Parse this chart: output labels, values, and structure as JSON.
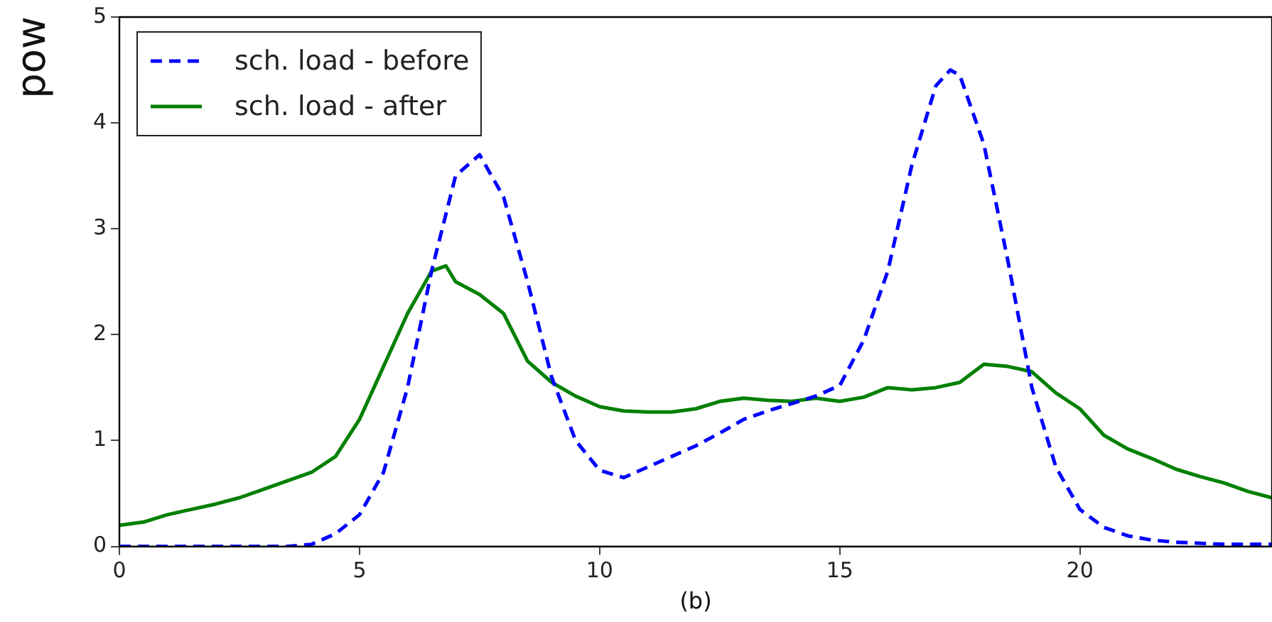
{
  "chart_data": {
    "type": "line",
    "ylabel": "pow",
    "xlabel": "(b)",
    "xlim": [
      0,
      24
    ],
    "xticks": [
      0,
      5,
      10,
      15,
      20
    ],
    "ylim": [
      0,
      5
    ],
    "yticks": [
      0,
      1,
      2,
      3,
      4,
      5
    ],
    "grid": false,
    "legend": "top left",
    "marker": "none",
    "series": [
      {
        "name": "sch. load - before",
        "color": "#0000ff",
        "line_style": "dashed",
        "x": [
          0,
          0.5,
          1,
          1.5,
          2,
          2.5,
          3,
          3.5,
          4,
          4.5,
          5,
          5.5,
          6,
          6.5,
          7,
          7.5,
          8,
          8.5,
          9,
          9.5,
          10,
          10.5,
          11,
          11.5,
          12,
          12.5,
          13,
          13.5,
          14,
          14.5,
          15,
          15.5,
          16,
          16.5,
          17,
          17.3,
          17.5,
          18,
          18.5,
          19,
          19.5,
          20,
          20.5,
          21,
          21.5,
          22,
          23,
          24
        ],
        "values": [
          0,
          0,
          0,
          0,
          0,
          0,
          0,
          0,
          0.02,
          0.12,
          0.3,
          0.7,
          1.5,
          2.6,
          3.5,
          3.7,
          3.3,
          2.5,
          1.6,
          1.0,
          0.72,
          0.65,
          0.75,
          0.85,
          0.95,
          1.07,
          1.2,
          1.28,
          1.35,
          1.42,
          1.52,
          1.95,
          2.6,
          3.6,
          4.35,
          4.5,
          4.45,
          3.8,
          2.7,
          1.5,
          0.75,
          0.35,
          0.18,
          0.1,
          0.06,
          0.04,
          0.02,
          0.02
        ]
      },
      {
        "name": "sch. load - after",
        "color": "#008000",
        "line_style": "solid",
        "x": [
          0,
          0.5,
          1,
          1.5,
          2,
          2.5,
          3,
          3.5,
          4,
          4.5,
          5,
          5.5,
          6,
          6.5,
          6.8,
          7,
          7.5,
          8,
          8.5,
          9,
          9.5,
          10,
          10.5,
          11,
          11.5,
          12,
          12.5,
          13,
          13.5,
          14,
          14.5,
          15,
          15.5,
          16,
          16.5,
          17,
          17.5,
          18,
          18.5,
          19,
          19.5,
          20,
          20.5,
          21,
          21.5,
          22,
          22.5,
          23,
          23.5,
          24
        ],
        "values": [
          0.2,
          0.23,
          0.3,
          0.35,
          0.4,
          0.46,
          0.54,
          0.62,
          0.7,
          0.85,
          1.2,
          1.7,
          2.2,
          2.6,
          2.65,
          2.5,
          2.38,
          2.2,
          1.75,
          1.55,
          1.42,
          1.32,
          1.28,
          1.27,
          1.27,
          1.3,
          1.37,
          1.4,
          1.38,
          1.37,
          1.4,
          1.37,
          1.41,
          1.5,
          1.48,
          1.5,
          1.55,
          1.72,
          1.7,
          1.65,
          1.45,
          1.3,
          1.05,
          0.92,
          0.83,
          0.73,
          0.66,
          0.6,
          0.52,
          0.46
        ]
      }
    ]
  }
}
